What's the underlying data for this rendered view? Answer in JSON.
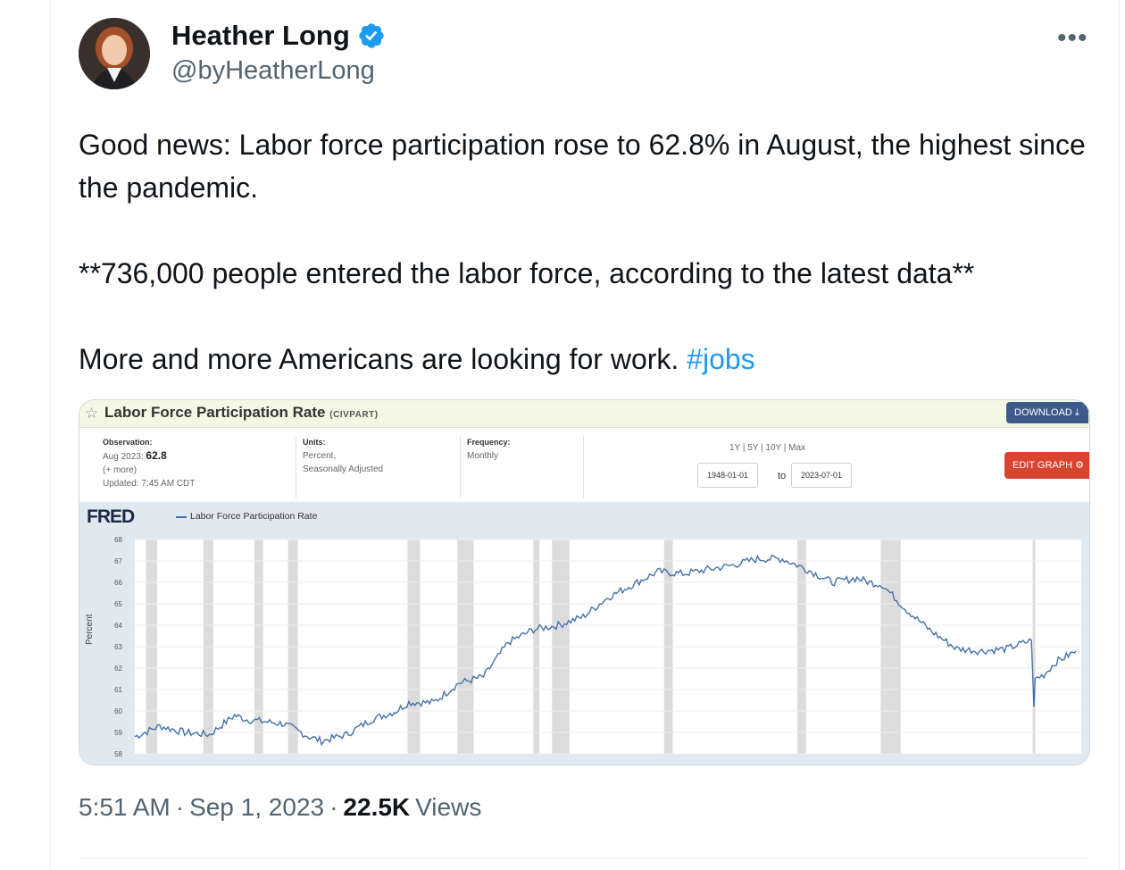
{
  "tweet": {
    "author_name": "Heather Long",
    "author_handle": "@byHeatherLong",
    "verified_icon": "verified-badge-icon",
    "more_icon": "more-options-icon",
    "paragraphs": [
      "Good news: Labor force participation rose to 62.8% in August, the highest since the pandemic.",
      "**736,000 people entered the labor force, according to the latest data**"
    ],
    "last_line": "More and more Americans are looking for work.",
    "hashtag": "#jobs",
    "time": "5:51 AM",
    "sep": "·",
    "date": "Sep 1, 2023",
    "views_count": "22.5K",
    "views_label": "Views",
    "colors": {
      "link": "#1d9bf0",
      "secondary": "#536471",
      "badge": "#1d9bf0"
    }
  },
  "fred": {
    "title": "Labor Force Participation Rate",
    "series_code": "(CIVPART)",
    "download_label": "DOWNLOAD",
    "observation_label": "Observation:",
    "observation_date": "Aug 2023:",
    "observation_value": "62.8",
    "more_label": "(+ more)",
    "updated": "Updated: 7:45 AM CDT",
    "units_label": "Units:",
    "units_line1": "Percent,",
    "units_line2": "Seasonally Adjusted",
    "frequency_label": "Frequency:",
    "frequency_value": "Monthly",
    "ranges": "1Y | 5Y | 10Y | Max",
    "date_from": "1948-01-01",
    "to_label": "to",
    "date_to": "2023-07-01",
    "edit_label": "EDIT GRAPH",
    "logo": "FRED",
    "legend": "Labor Force Participation Rate",
    "ylabel": "Percent"
  },
  "chart_data": {
    "type": "line",
    "xlim": [
      1948,
      2024
    ],
    "ylim": [
      58,
      68
    ],
    "yticks": [
      "68",
      "67",
      "66",
      "65",
      "64",
      "63",
      "62",
      "61",
      "60",
      "59",
      "58"
    ],
    "recessions": [
      [
        1948.9,
        1949.8
      ],
      [
        1953.5,
        1954.3
      ],
      [
        1957.6,
        1958.3
      ],
      [
        1960.3,
        1961.1
      ],
      [
        1969.9,
        1970.9
      ],
      [
        1973.9,
        1975.2
      ],
      [
        1980.0,
        1980.5
      ],
      [
        1981.5,
        1982.9
      ],
      [
        1990.5,
        1991.2
      ],
      [
        2001.2,
        2001.9
      ],
      [
        2007.9,
        2009.5
      ],
      [
        2020.1,
        2020.3
      ]
    ],
    "series": [
      {
        "name": "Labor Force Participation Rate",
        "x": [
          1948,
          1950,
          1952,
          1954,
          1956,
          1957,
          1960,
          1962,
          1963,
          1965,
          1967,
          1969,
          1970,
          1972,
          1974,
          1976,
          1978,
          1980,
          1982,
          1984,
          1986,
          1988,
          1990,
          1992,
          1994,
          1996,
          1998,
          1999,
          2000,
          2002,
          2004,
          2006,
          2007,
          2008,
          2010,
          2012,
          2014,
          2016,
          2018,
          2020.0,
          2020.2,
          2020.3,
          2021,
          2022,
          2023.6
        ],
        "values": [
          58.8,
          59.3,
          59.0,
          58.9,
          59.8,
          59.6,
          59.4,
          58.8,
          58.6,
          58.9,
          59.6,
          60.0,
          60.4,
          60.4,
          61.3,
          61.6,
          63.2,
          63.8,
          64.0,
          64.4,
          65.3,
          65.9,
          66.5,
          66.4,
          66.6,
          66.8,
          67.1,
          67.1,
          67.1,
          66.6,
          66.0,
          66.2,
          66.0,
          65.9,
          64.7,
          63.7,
          62.9,
          62.8,
          62.9,
          63.3,
          60.2,
          61.5,
          61.7,
          62.3,
          62.8
        ]
      }
    ],
    "colors": {
      "line": "#4472a8",
      "recession": "#dcdcdc",
      "plot_bg": "#ffffff",
      "outer_bg": "#e1e9f0"
    }
  }
}
